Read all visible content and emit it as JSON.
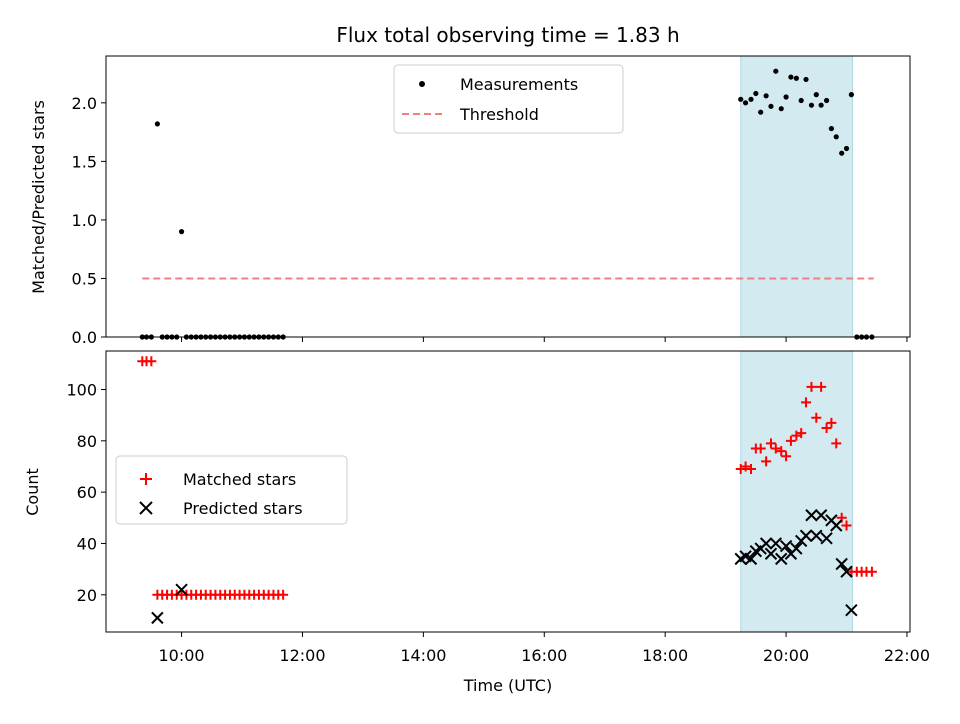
{
  "chart_data": {
    "type": "scatter",
    "title": "Flux total observing time = 1.83 h",
    "xlabel": "Time (UTC)",
    "xlim": [
      8.75,
      22.05
    ],
    "x_ticks": [
      {
        "value": 10,
        "label": "10:00"
      },
      {
        "value": 12,
        "label": "12:00"
      },
      {
        "value": 14,
        "label": "14:00"
      },
      {
        "value": 16,
        "label": "16:00"
      },
      {
        "value": 18,
        "label": "18:00"
      },
      {
        "value": 20,
        "label": "20:00"
      },
      {
        "value": 22,
        "label": "22:00"
      }
    ],
    "shaded_interval": [
      19.25,
      21.1
    ],
    "shade_color": "#d3eaf1",
    "top": {
      "ylabel": "Matched/Predicted stars",
      "ylim": [
        0.0,
        2.4
      ],
      "y_ticks": [
        {
          "value": 0.0,
          "label": "0.0"
        },
        {
          "value": 0.5,
          "label": "0.5"
        },
        {
          "value": 1.0,
          "label": "1.0"
        },
        {
          "value": 1.5,
          "label": "1.5"
        },
        {
          "value": 2.0,
          "label": "2.0"
        }
      ],
      "legend": {
        "placement": "top-center",
        "measurements_label": "Measurements",
        "threshold_label": "Threshold"
      },
      "threshold": {
        "x": [
          9.35,
          21.45
        ],
        "y": 0.5,
        "color": "#f08080"
      },
      "measurements": [
        [
          9.35,
          0
        ],
        [
          9.42,
          0
        ],
        [
          9.5,
          0
        ],
        [
          9.6,
          1.82
        ],
        [
          9.68,
          0
        ],
        [
          9.76,
          0
        ],
        [
          9.84,
          0
        ],
        [
          9.92,
          0
        ],
        [
          10.0,
          0.9
        ],
        [
          10.08,
          0
        ],
        [
          10.16,
          0
        ],
        [
          10.24,
          0
        ],
        [
          10.32,
          0
        ],
        [
          10.4,
          0
        ],
        [
          10.48,
          0
        ],
        [
          10.56,
          0
        ],
        [
          10.64,
          0
        ],
        [
          10.72,
          0
        ],
        [
          10.8,
          0
        ],
        [
          10.88,
          0
        ],
        [
          10.96,
          0
        ],
        [
          11.04,
          0
        ],
        [
          11.12,
          0
        ],
        [
          11.2,
          0
        ],
        [
          11.28,
          0
        ],
        [
          11.36,
          0
        ],
        [
          11.44,
          0
        ],
        [
          11.52,
          0
        ],
        [
          11.6,
          0
        ],
        [
          11.68,
          0
        ],
        [
          19.25,
          2.03
        ],
        [
          19.33,
          2.0
        ],
        [
          19.42,
          2.03
        ],
        [
          19.5,
          2.08
        ],
        [
          19.58,
          1.92
        ],
        [
          19.67,
          2.06
        ],
        [
          19.75,
          1.97
        ],
        [
          19.83,
          2.27
        ],
        [
          19.92,
          1.95
        ],
        [
          20.0,
          2.05
        ],
        [
          20.08,
          2.22
        ],
        [
          20.17,
          2.21
        ],
        [
          20.25,
          2.02
        ],
        [
          20.33,
          2.2
        ],
        [
          20.42,
          1.98
        ],
        [
          20.5,
          2.07
        ],
        [
          20.58,
          1.98
        ],
        [
          20.67,
          2.02
        ],
        [
          20.75,
          1.78
        ],
        [
          20.83,
          1.71
        ],
        [
          20.92,
          1.57
        ],
        [
          21.0,
          1.61
        ],
        [
          21.08,
          2.07
        ],
        [
          21.17,
          0
        ],
        [
          21.25,
          0
        ],
        [
          21.33,
          0
        ],
        [
          21.42,
          0
        ]
      ]
    },
    "bottom": {
      "ylabel": "Count",
      "ylim": [
        5.5,
        115
      ],
      "y_ticks": [
        {
          "value": 20,
          "label": "20"
        },
        {
          "value": 40,
          "label": "40"
        },
        {
          "value": 60,
          "label": "60"
        },
        {
          "value": 80,
          "label": "80"
        },
        {
          "value": 100,
          "label": "100"
        }
      ],
      "legend": {
        "placement": "center-left",
        "matched_label": "Matched stars",
        "predicted_label": "Predicted stars"
      },
      "matched_color": "#ff0000",
      "predicted_color": "#000000",
      "matched": [
        [
          9.35,
          111
        ],
        [
          9.42,
          111
        ],
        [
          9.5,
          111
        ],
        [
          9.6,
          20
        ],
        [
          9.68,
          20
        ],
        [
          9.76,
          20
        ],
        [
          9.84,
          20
        ],
        [
          9.92,
          20
        ],
        [
          10.0,
          20
        ],
        [
          10.08,
          20
        ],
        [
          10.16,
          20
        ],
        [
          10.24,
          20
        ],
        [
          10.32,
          20
        ],
        [
          10.4,
          20
        ],
        [
          10.48,
          20
        ],
        [
          10.56,
          20
        ],
        [
          10.64,
          20
        ],
        [
          10.72,
          20
        ],
        [
          10.8,
          20
        ],
        [
          10.88,
          20
        ],
        [
          10.96,
          20
        ],
        [
          11.04,
          20
        ],
        [
          11.12,
          20
        ],
        [
          11.2,
          20
        ],
        [
          11.28,
          20
        ],
        [
          11.36,
          20
        ],
        [
          11.44,
          20
        ],
        [
          11.52,
          20
        ],
        [
          11.6,
          20
        ],
        [
          11.68,
          20
        ],
        [
          19.25,
          69
        ],
        [
          19.33,
          70
        ],
        [
          19.42,
          69
        ],
        [
          19.5,
          77
        ],
        [
          19.58,
          77
        ],
        [
          19.67,
          72
        ],
        [
          19.75,
          79
        ],
        [
          19.83,
          77
        ],
        [
          19.92,
          76
        ],
        [
          20.0,
          74
        ],
        [
          20.08,
          80
        ],
        [
          20.17,
          82
        ],
        [
          20.25,
          83
        ],
        [
          20.33,
          95
        ],
        [
          20.42,
          101
        ],
        [
          20.5,
          89
        ],
        [
          20.58,
          101
        ],
        [
          20.67,
          85
        ],
        [
          20.75,
          87
        ],
        [
          20.83,
          79
        ],
        [
          20.92,
          50
        ],
        [
          21.0,
          47
        ],
        [
          21.08,
          29
        ],
        [
          21.17,
          29
        ],
        [
          21.25,
          29
        ],
        [
          21.33,
          29
        ],
        [
          21.42,
          29
        ]
      ],
      "predicted": [
        [
          9.6,
          11
        ],
        [
          10.0,
          22
        ],
        [
          19.25,
          34
        ],
        [
          19.33,
          35
        ],
        [
          19.42,
          34
        ],
        [
          19.5,
          37
        ],
        [
          19.58,
          38
        ],
        [
          19.67,
          40
        ],
        [
          19.75,
          36
        ],
        [
          19.83,
          40
        ],
        [
          19.92,
          34
        ],
        [
          20.0,
          39
        ],
        [
          20.08,
          36
        ],
        [
          20.17,
          38
        ],
        [
          20.25,
          41
        ],
        [
          20.33,
          43
        ],
        [
          20.42,
          51
        ],
        [
          20.5,
          43
        ],
        [
          20.58,
          51
        ],
        [
          20.67,
          42
        ],
        [
          20.75,
          49
        ],
        [
          20.83,
          47
        ],
        [
          20.92,
          32
        ],
        [
          21.0,
          29
        ],
        [
          21.08,
          14
        ]
      ]
    }
  }
}
